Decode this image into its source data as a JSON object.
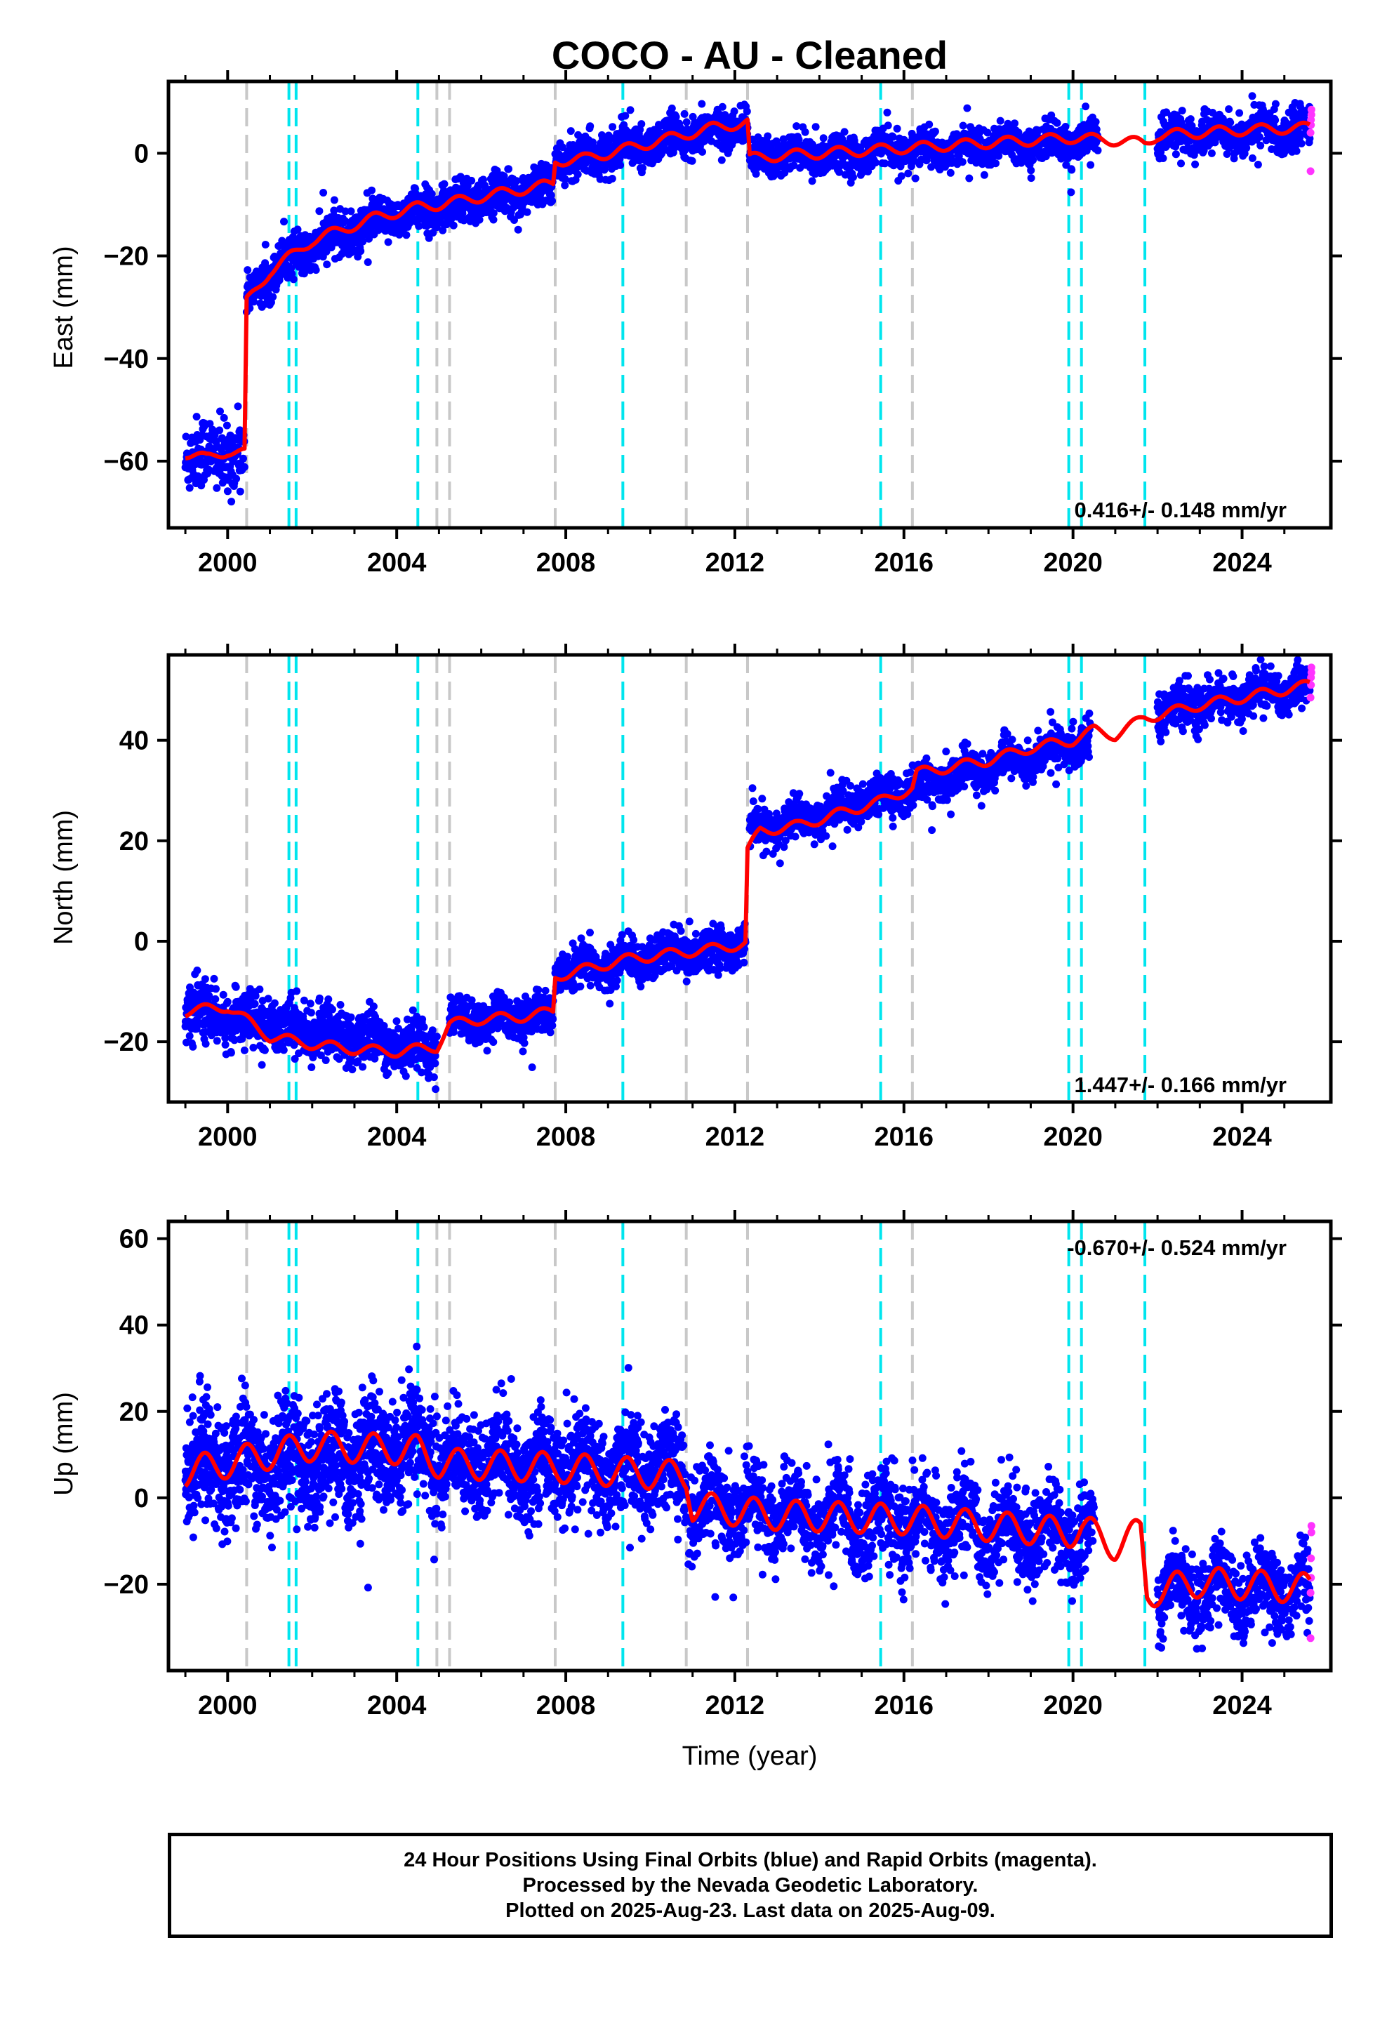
{
  "title": "COCO  - AU - Cleaned",
  "xlabel": "Time (year)",
  "footer": {
    "line1": "24 Hour Positions Using Final Orbits (blue) and Rapid Orbits (magenta).",
    "line2": "Processed by the Nevada Geodetic Laboratory.",
    "line3": "Plotted on 2025-Aug-23. Last data on 2025-Aug-09."
  },
  "colors": {
    "final_orbits": "#0000ff",
    "rapid_orbits": "#ff33ff",
    "model": "#ff0000",
    "equipment_change": "#c8c8c8",
    "earthquake": "#00e5ee"
  },
  "chart_data": [
    {
      "type": "scatter",
      "panel": "east",
      "ylabel": "East (mm)",
      "rate_text": "0.416+/- 0.148 mm/yr",
      "xlim": [
        1998.6,
        2026.1
      ],
      "ylim": [
        -73,
        14
      ],
      "xticks": [
        2000,
        2004,
        2008,
        2012,
        2016,
        2020,
        2024
      ],
      "yticks": [
        -60,
        -40,
        -20,
        0
      ],
      "grey_lines": [
        2000.45,
        2004.95,
        2005.25,
        2007.75,
        2010.85,
        2012.3,
        2016.2
      ],
      "cyan_lines": [
        2001.45,
        2001.62,
        2004.5,
        2009.35,
        2015.45,
        2019.9,
        2020.2,
        2021.7
      ],
      "model": [
        [
          1999.0,
          -58.5
        ],
        [
          1999.5,
          -59.5
        ],
        [
          2000.0,
          -58.0
        ],
        [
          2000.4,
          -58.5
        ],
        [
          2000.45,
          -29.0
        ],
        [
          2001.0,
          -23.0
        ],
        [
          2001.5,
          -20.0
        ],
        [
          2002.0,
          -17.0
        ],
        [
          2002.5,
          -15.5
        ],
        [
          2003.0,
          -14.0
        ],
        [
          2003.5,
          -12.5
        ],
        [
          2004.0,
          -11.5
        ],
        [
          2004.5,
          -10.5
        ],
        [
          2005.0,
          -10.0
        ],
        [
          2006.0,
          -8.5
        ],
        [
          2007.0,
          -7.0
        ],
        [
          2007.7,
          -6.0
        ],
        [
          2007.75,
          -1.5
        ],
        [
          2008.5,
          -1.0
        ],
        [
          2009.5,
          1.0
        ],
        [
          2010.5,
          3.0
        ],
        [
          2011.5,
          5.0
        ],
        [
          2012.3,
          6.0
        ],
        [
          2012.35,
          -1.0
        ],
        [
          2013.0,
          -0.5
        ],
        [
          2014.0,
          0.0
        ],
        [
          2015.0,
          0.5
        ],
        [
          2016.0,
          1.0
        ],
        [
          2017.0,
          1.5
        ],
        [
          2018.0,
          2.0
        ],
        [
          2019.0,
          2.5
        ],
        [
          2020.0,
          3.0
        ],
        [
          2021.0,
          2.5
        ],
        [
          2021.7,
          2.0
        ],
        [
          2022.0,
          3.5
        ],
        [
          2023.0,
          4.0
        ],
        [
          2024.0,
          4.5
        ],
        [
          2025.6,
          5.0
        ]
      ],
      "final_segments": [
        {
          "t0": 1999.0,
          "t1": 2000.4,
          "y0": -59.0,
          "y1": -58.5,
          "spread": 3.5,
          "n": 180
        },
        {
          "t0": 2000.45,
          "t1": 2007.7,
          "y0": -28.5,
          "y1": -6.5,
          "spread": 2.0,
          "n": 1300,
          "curve": "log"
        },
        {
          "t0": 2007.75,
          "t1": 2012.3,
          "y0": -1.5,
          "y1": 5.5,
          "spread": 1.8,
          "n": 800
        },
        {
          "t0": 2012.35,
          "t1": 2020.6,
          "y0": -1.0,
          "y1": 2.5,
          "spread": 1.8,
          "n": 1200
        },
        {
          "t0": 2022.0,
          "t1": 2025.6,
          "y0": 3.0,
          "y1": 5.0,
          "spread": 2.0,
          "n": 520
        }
      ],
      "rapid_points": [
        [
          2025.62,
          -3.5
        ],
        [
          2025.62,
          4.0
        ],
        [
          2025.63,
          5.5
        ],
        [
          2025.63,
          6.5
        ],
        [
          2025.64,
          7.5
        ],
        [
          2025.64,
          8.5
        ]
      ]
    },
    {
      "type": "scatter",
      "panel": "north",
      "ylabel": "North (mm)",
      "rate_text": "1.447+/- 0.166 mm/yr",
      "xlim": [
        1998.6,
        2026.1
      ],
      "ylim": [
        -32,
        57
      ],
      "xticks": [
        2000,
        2004,
        2008,
        2012,
        2016,
        2020,
        2024
      ],
      "yticks": [
        -20,
        0,
        20,
        40
      ],
      "grey_lines": [
        2000.45,
        2004.95,
        2005.25,
        2007.75,
        2010.85,
        2012.3,
        2016.2
      ],
      "cyan_lines": [
        2001.45,
        2001.62,
        2004.5,
        2009.35,
        2015.45,
        2019.9,
        2020.2,
        2021.7
      ],
      "model": [
        [
          1999.0,
          -14.0
        ],
        [
          2000.0,
          -13.0
        ],
        [
          2001.0,
          -19.0
        ],
        [
          2002.0,
          -20.5
        ],
        [
          2003.0,
          -21.5
        ],
        [
          2004.0,
          -22.0
        ],
        [
          2004.95,
          -21.0
        ],
        [
          2005.25,
          -16.5
        ],
        [
          2006.0,
          -15.5
        ],
        [
          2007.0,
          -15.0
        ],
        [
          2007.7,
          -14.0
        ],
        [
          2007.75,
          -7.0
        ],
        [
          2008.5,
          -5.5
        ],
        [
          2009.5,
          -3.5
        ],
        [
          2010.5,
          -2.5
        ],
        [
          2011.5,
          -1.5
        ],
        [
          2012.25,
          -0.5
        ],
        [
          2012.3,
          18.0
        ],
        [
          2012.6,
          22.0
        ],
        [
          2013.5,
          23.0
        ],
        [
          2014.5,
          25.5
        ],
        [
          2015.5,
          28.0
        ],
        [
          2016.2,
          30.5
        ],
        [
          2016.3,
          33.5
        ],
        [
          2017.0,
          34.5
        ],
        [
          2018.0,
          36.0
        ],
        [
          2019.0,
          38.5
        ],
        [
          2020.0,
          40.0
        ],
        [
          2020.5,
          42.0
        ],
        [
          2021.0,
          41.0
        ],
        [
          2021.7,
          44.5
        ],
        [
          2022.0,
          45.0
        ],
        [
          2023.0,
          47.0
        ],
        [
          2024.0,
          48.5
        ],
        [
          2025.6,
          51.0
        ]
      ],
      "final_segments": [
        {
          "t0": 1999.0,
          "t1": 2004.95,
          "y0": -14.0,
          "y1": -21.5,
          "spread": 2.5,
          "n": 1000
        },
        {
          "t0": 2005.25,
          "t1": 2007.7,
          "y0": -16.0,
          "y1": -14.5,
          "spread": 2.0,
          "n": 420
        },
        {
          "t0": 2007.75,
          "t1": 2012.25,
          "y0": -6.5,
          "y1": -0.5,
          "spread": 2.0,
          "n": 800
        },
        {
          "t0": 2012.35,
          "t1": 2020.4,
          "y0": 21.5,
          "y1": 40.0,
          "spread": 2.0,
          "n": 1200
        },
        {
          "t0": 2022.0,
          "t1": 2025.6,
          "y0": 45.5,
          "y1": 51.0,
          "spread": 2.0,
          "n": 520
        }
      ],
      "rapid_points": [
        [
          2025.62,
          48.5
        ],
        [
          2025.63,
          51.0
        ],
        [
          2025.63,
          52.5
        ],
        [
          2025.64,
          53.5
        ],
        [
          2025.64,
          54.5
        ]
      ]
    },
    {
      "type": "scatter",
      "panel": "up",
      "ylabel": "Up (mm)",
      "rate_text": "-0.670+/- 0.524 mm/yr",
      "xlim": [
        1998.6,
        2026.1
      ],
      "ylim": [
        -40,
        64
      ],
      "xticks": [
        2000,
        2004,
        2008,
        2012,
        2016,
        2020,
        2024
      ],
      "yticks": [
        -20,
        0,
        20,
        40,
        60
      ],
      "grey_lines": [
        2000.45,
        2004.95,
        2005.25,
        2007.75,
        2010.85,
        2012.3,
        2016.2
      ],
      "cyan_lines": [
        2001.45,
        2001.62,
        2004.5,
        2009.35,
        2015.45,
        2019.9,
        2020.2,
        2021.7
      ],
      "model": [
        [
          1999.0,
          6.0
        ],
        [
          2000.45,
          9.0
        ],
        [
          2002.0,
          12.0
        ],
        [
          2004.5,
          11.0
        ],
        [
          2005.0,
          8.0
        ],
        [
          2007.75,
          7.0
        ],
        [
          2010.85,
          5.0
        ],
        [
          2011.0,
          -2.0
        ],
        [
          2013.0,
          -4.0
        ],
        [
          2016.0,
          -5.0
        ],
        [
          2019.9,
          -8.0
        ],
        [
          2020.2,
          -7.0
        ],
        [
          2021.0,
          -11.0
        ],
        [
          2021.6,
          -8.0
        ],
        [
          2021.75,
          -22.0
        ],
        [
          2023.0,
          -19.5
        ],
        [
          2025.6,
          -21.0
        ]
      ],
      "final_segments": [
        {
          "t0": 1999.0,
          "t1": 2004.95,
          "y0": 7.0,
          "y1": 11.0,
          "spread": 6.5,
          "n": 1200
        },
        {
          "t0": 2005.0,
          "t1": 2010.85,
          "y0": 8.0,
          "y1": 6.0,
          "spread": 5.5,
          "n": 1100
        },
        {
          "t0": 2010.9,
          "t1": 2020.5,
          "y0": -2.0,
          "y1": -9.0,
          "spread": 5.0,
          "n": 1500
        },
        {
          "t0": 2022.0,
          "t1": 2025.6,
          "y0": -21.0,
          "y1": -21.5,
          "spread": 4.5,
          "n": 520
        }
      ],
      "rapid_points": [
        [
          2025.62,
          -32.5
        ],
        [
          2025.62,
          -22.0
        ],
        [
          2025.63,
          -18.5
        ],
        [
          2025.63,
          -14.0
        ],
        [
          2025.64,
          -8.0
        ],
        [
          2025.64,
          -6.5
        ]
      ]
    }
  ]
}
